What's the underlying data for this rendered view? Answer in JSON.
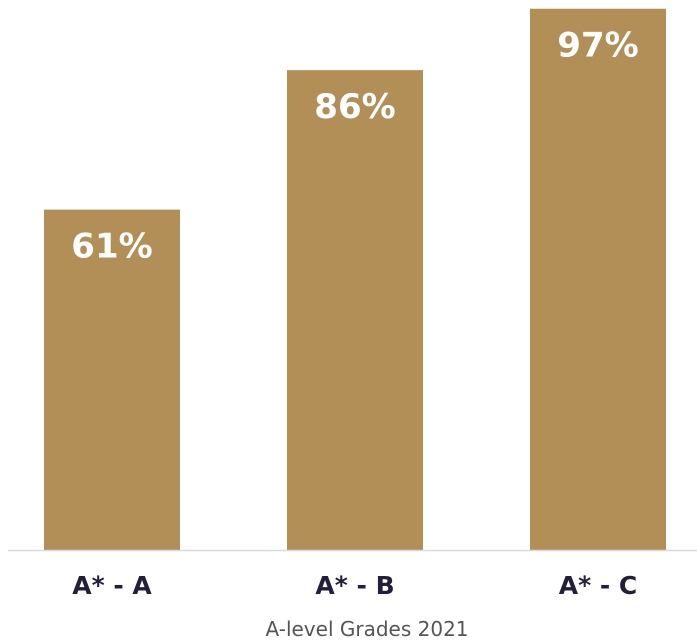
{
  "chart_data": {
    "type": "bar",
    "title": "",
    "xlabel": "A-level Grades 2021",
    "ylabel": "",
    "categories": [
      "A* - A",
      "A* - B",
      "A* - C"
    ],
    "values": [
      61,
      86,
      97
    ],
    "data_labels": [
      "61%",
      "86%",
      "97%"
    ],
    "ylim": [
      0,
      100
    ],
    "grid": false,
    "legend": "none",
    "colors": {
      "bar": "#b38f58",
      "bar_label": "#ffffff",
      "category_label": "#231f3a",
      "axis_line": "#d9d9d9",
      "axis_title": "#555555"
    }
  }
}
